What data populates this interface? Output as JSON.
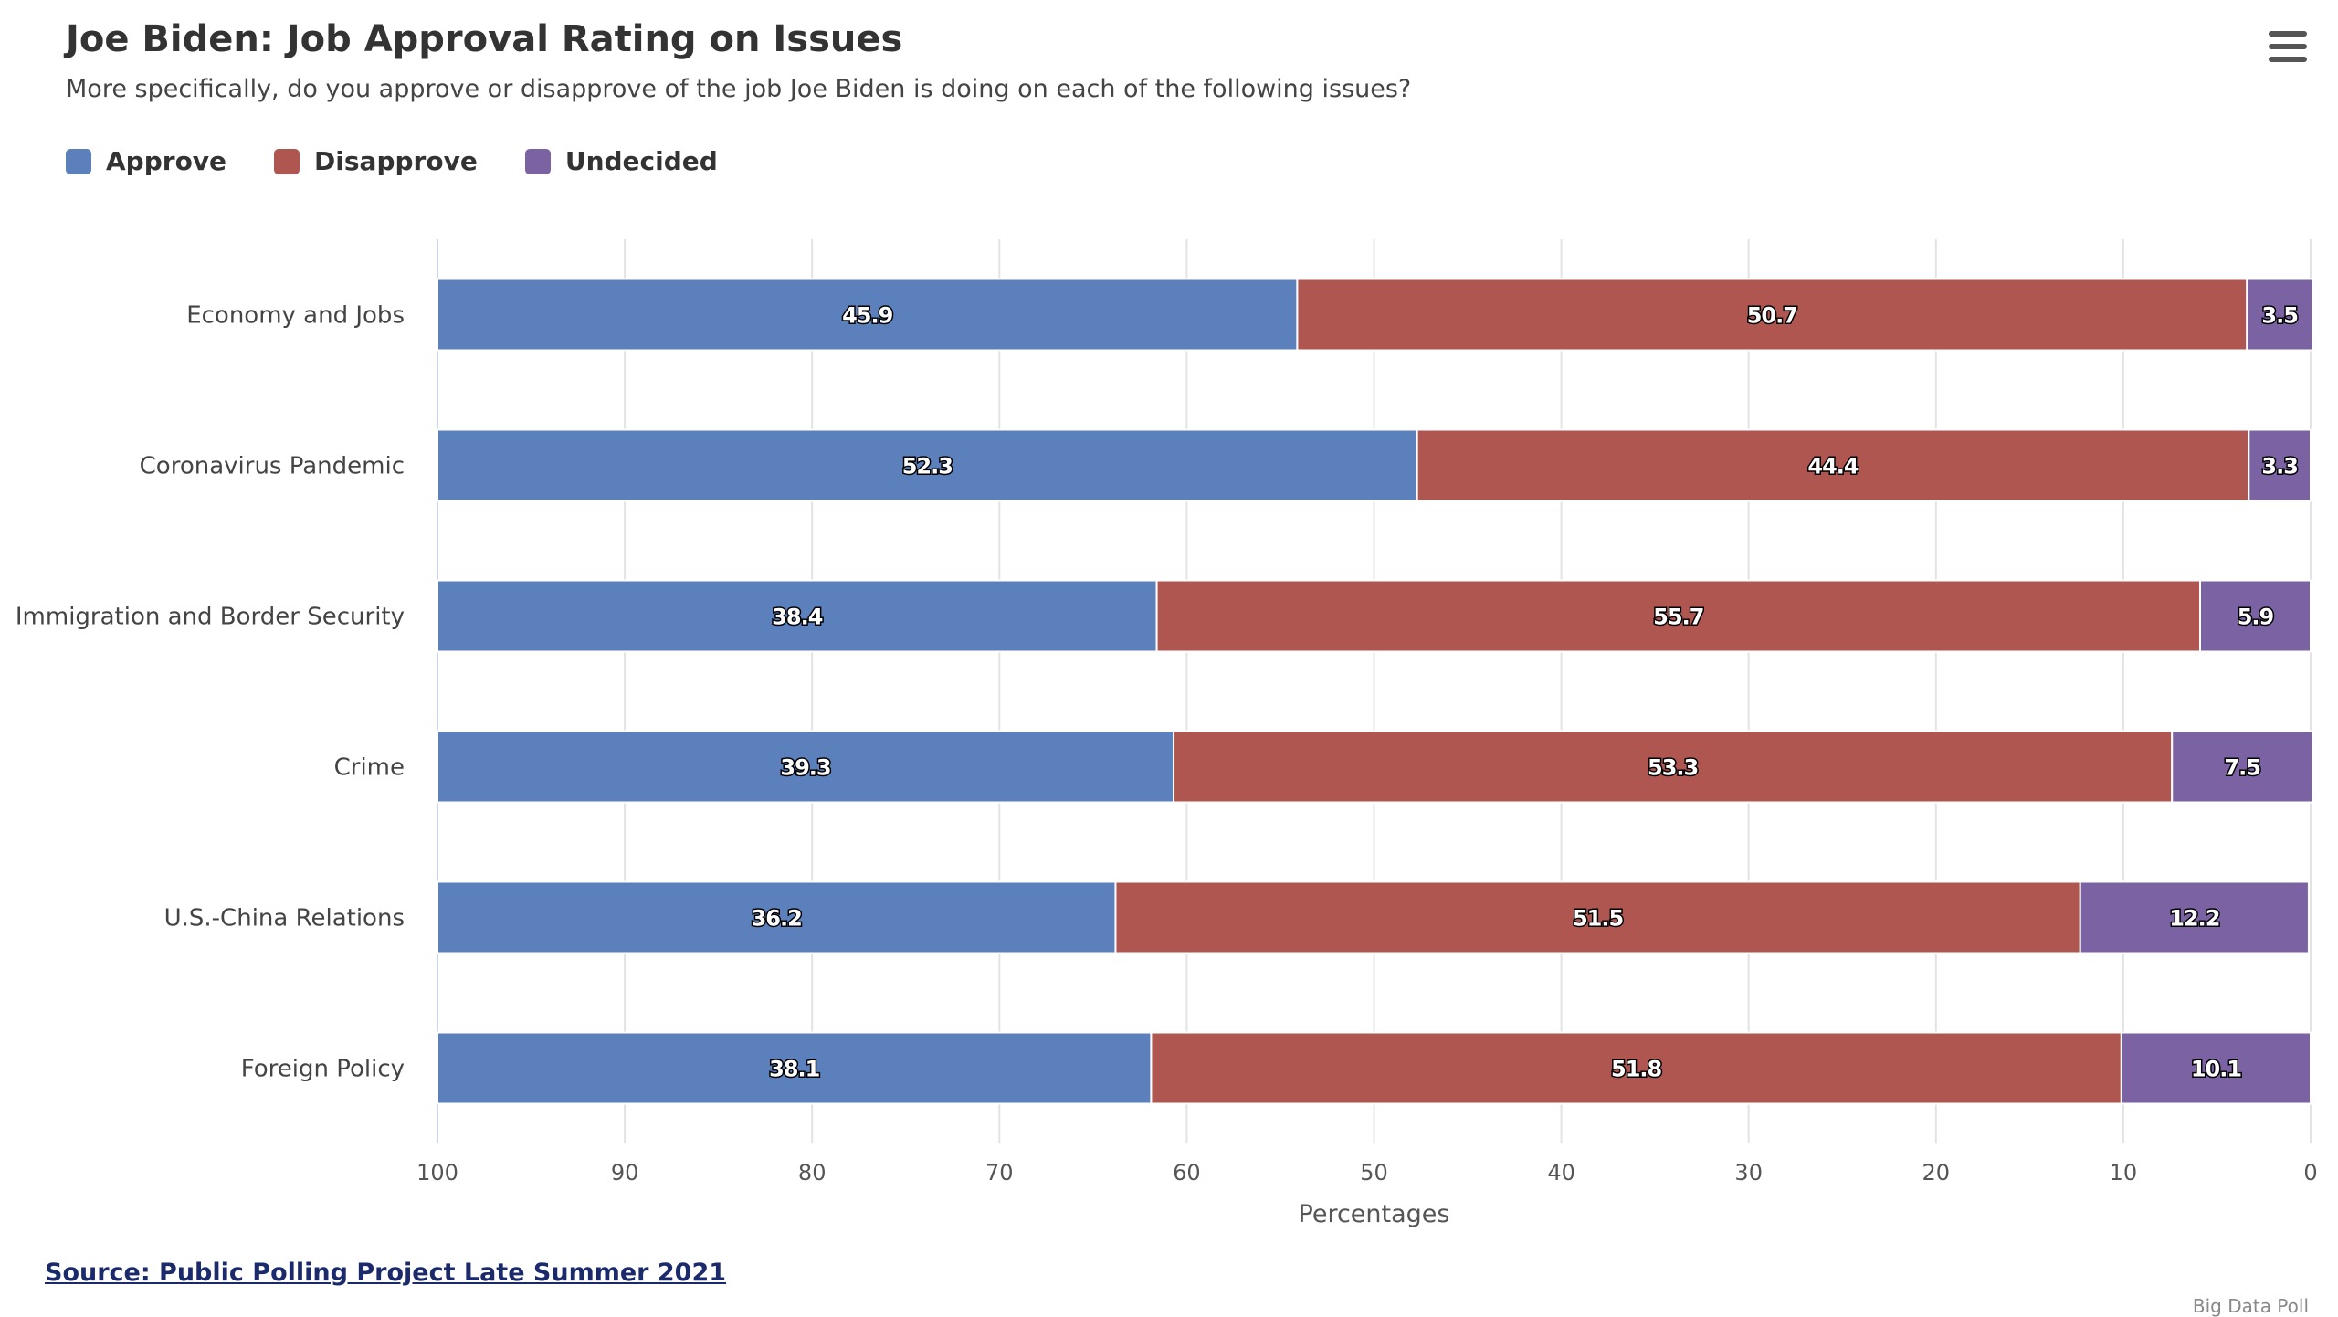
{
  "header": {
    "title": "Joe Biden: Job Approval Rating on Issues",
    "subtitle": "More specifically, do you approve or disapprove of the job Joe Biden is doing on each of the following issues?"
  },
  "legend": [
    {
      "label": "Approve",
      "color": "#5b80bb"
    },
    {
      "label": "Disapprove",
      "color": "#b05651"
    },
    {
      "label": "Undecided",
      "color": "#7b62a3"
    }
  ],
  "menu": {
    "icon": "hamburger-menu-icon"
  },
  "chart_data": {
    "type": "bar",
    "orientation": "horizontal",
    "stacked": true,
    "categories": [
      "Economy and Jobs",
      "Coronavirus Pandemic",
      "Immigration and Border Security",
      "Crime",
      "U.S.-China Relations",
      "Foreign Policy"
    ],
    "series": [
      {
        "name": "Approve",
        "values": [
          45.9,
          52.3,
          38.4,
          39.3,
          36.2,
          38.1
        ],
        "color": "#5b80bb"
      },
      {
        "name": "Disapprove",
        "values": [
          50.7,
          44.4,
          55.7,
          53.3,
          51.5,
          51.8
        ],
        "color": "#b05651"
      },
      {
        "name": "Undecided",
        "values": [
          3.5,
          3.3,
          5.9,
          7.5,
          12.2,
          10.1
        ],
        "color": "#7b62a3"
      }
    ],
    "xlabel": "Percentages",
    "xlim": [
      100,
      0
    ],
    "xticks": [
      100,
      90,
      80,
      70,
      60,
      50,
      40,
      30,
      20,
      10,
      0
    ],
    "grid": true,
    "legend_position": "top-left"
  },
  "footer": {
    "source": "Source: Public Polling Project Late Summer 2021",
    "credits": "Big Data Poll"
  }
}
